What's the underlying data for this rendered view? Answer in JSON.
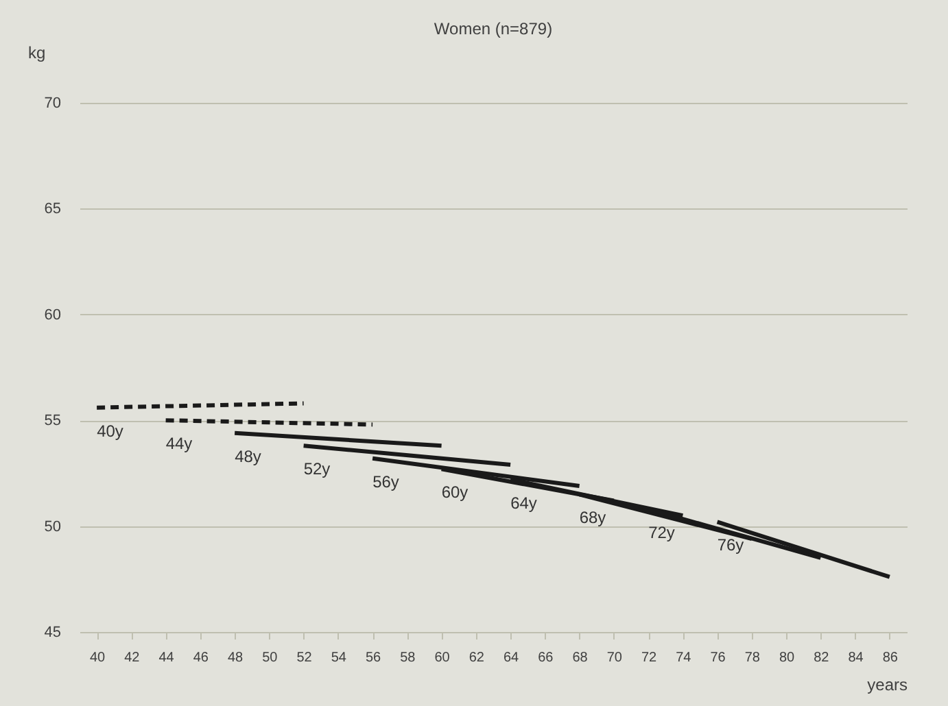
{
  "chart_data": {
    "type": "line",
    "title": "Women (n=879)",
    "xlabel": "years",
    "ylabel": "kg",
    "xlim": [
      39,
      87
    ],
    "xticks": [
      40,
      42,
      44,
      46,
      48,
      50,
      52,
      54,
      56,
      58,
      60,
      62,
      64,
      66,
      68,
      70,
      72,
      74,
      76,
      78,
      80,
      82,
      84,
      86
    ],
    "ylim": [
      45,
      70
    ],
    "yticks": [
      45,
      50,
      55,
      60,
      65,
      70
    ],
    "grid": "y",
    "marker": "none",
    "series": [
      {
        "name": "40y",
        "color": "#1a1a1a",
        "line_style": "dashed",
        "x": [
          40,
          52
        ],
        "values": [
          55.6,
          55.8
        ]
      },
      {
        "name": "44y",
        "color": "#1a1a1a",
        "line_style": "dashed",
        "x": [
          44,
          56
        ],
        "values": [
          55.0,
          54.8
        ]
      },
      {
        "name": "48y",
        "color": "#1a1a1a",
        "line_style": "solid",
        "x": [
          48,
          60
        ],
        "values": [
          54.4,
          53.8
        ]
      },
      {
        "name": "52y",
        "color": "#1a1a1a",
        "line_style": "solid",
        "x": [
          52,
          64
        ],
        "values": [
          53.8,
          52.9
        ]
      },
      {
        "name": "56y",
        "color": "#1a1a1a",
        "line_style": "solid",
        "x": [
          56,
          68
        ],
        "values": [
          53.2,
          51.9
        ]
      },
      {
        "name": "60y",
        "color": "#1a1a1a",
        "line_style": "solid",
        "x": [
          60,
          70
        ],
        "values": [
          52.7,
          51.2
        ]
      },
      {
        "name": "64y",
        "color": "#1a1a1a",
        "line_style": "solid",
        "x": [
          64,
          74
        ],
        "values": [
          52.2,
          50.5
        ]
      },
      {
        "name": "68y",
        "color": "#1a1a1a",
        "line_style": "solid",
        "x": [
          68,
          78
        ],
        "values": [
          51.5,
          49.4
        ]
      },
      {
        "name": "72y",
        "color": "#1a1a1a",
        "line_style": "solid",
        "x": [
          72,
          82
        ],
        "values": [
          50.8,
          48.5
        ]
      },
      {
        "name": "76y",
        "color": "#1a1a1a",
        "line_style": "solid",
        "x": [
          76,
          86
        ],
        "values": [
          50.2,
          47.6
        ]
      }
    ]
  }
}
